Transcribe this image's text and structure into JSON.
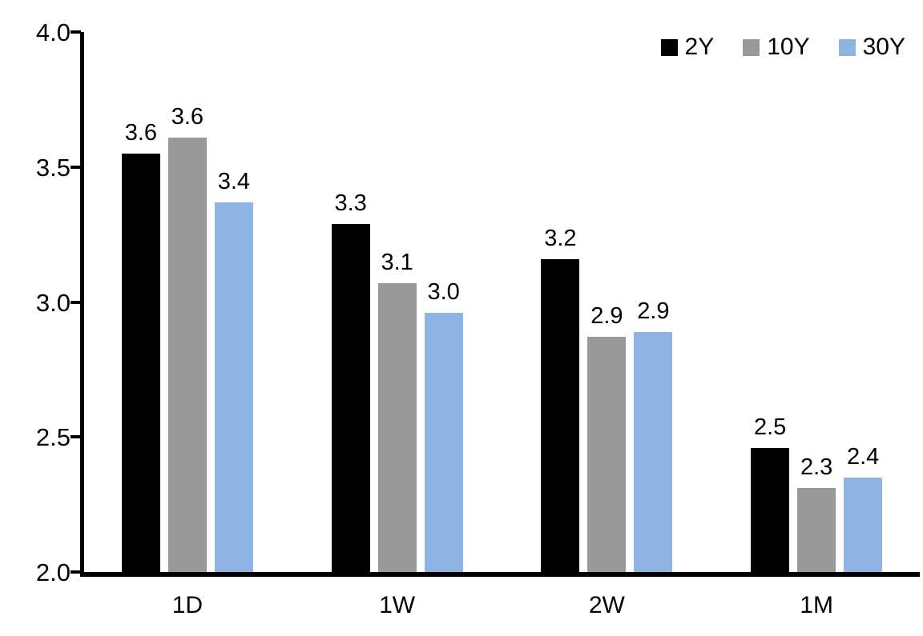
{
  "chart_data": {
    "type": "bar",
    "title": "",
    "xlabel": "",
    "ylabel": "",
    "categories": [
      "1D",
      "1W",
      "2W",
      "1M"
    ],
    "series": [
      {
        "name": "2Y",
        "color": "#000000",
        "values": [
          3.55,
          3.29,
          3.16,
          2.46
        ],
        "labels": [
          "3.6",
          "3.3",
          "3.2",
          "2.5"
        ]
      },
      {
        "name": "10Y",
        "color": "#999999",
        "values": [
          3.61,
          3.07,
          2.87,
          2.31
        ],
        "labels": [
          "3.6",
          "3.1",
          "2.9",
          "2.3"
        ]
      },
      {
        "name": "30Y",
        "color": "#8DB4E2",
        "values": [
          3.37,
          2.96,
          2.89,
          2.35
        ],
        "labels": [
          "3.4",
          "3.0",
          "2.9",
          "2.4"
        ]
      }
    ],
    "ylim": [
      2.0,
      4.0
    ],
    "yticks": [
      "2.0",
      "2.5",
      "3.0",
      "3.5",
      "4.0"
    ],
    "ytick_values": [
      2.0,
      2.5,
      3.0,
      3.5,
      4.0
    ],
    "grid": false,
    "legend_position": "top-right",
    "axis_color": "#000000",
    "background_color": "#ffffff"
  }
}
